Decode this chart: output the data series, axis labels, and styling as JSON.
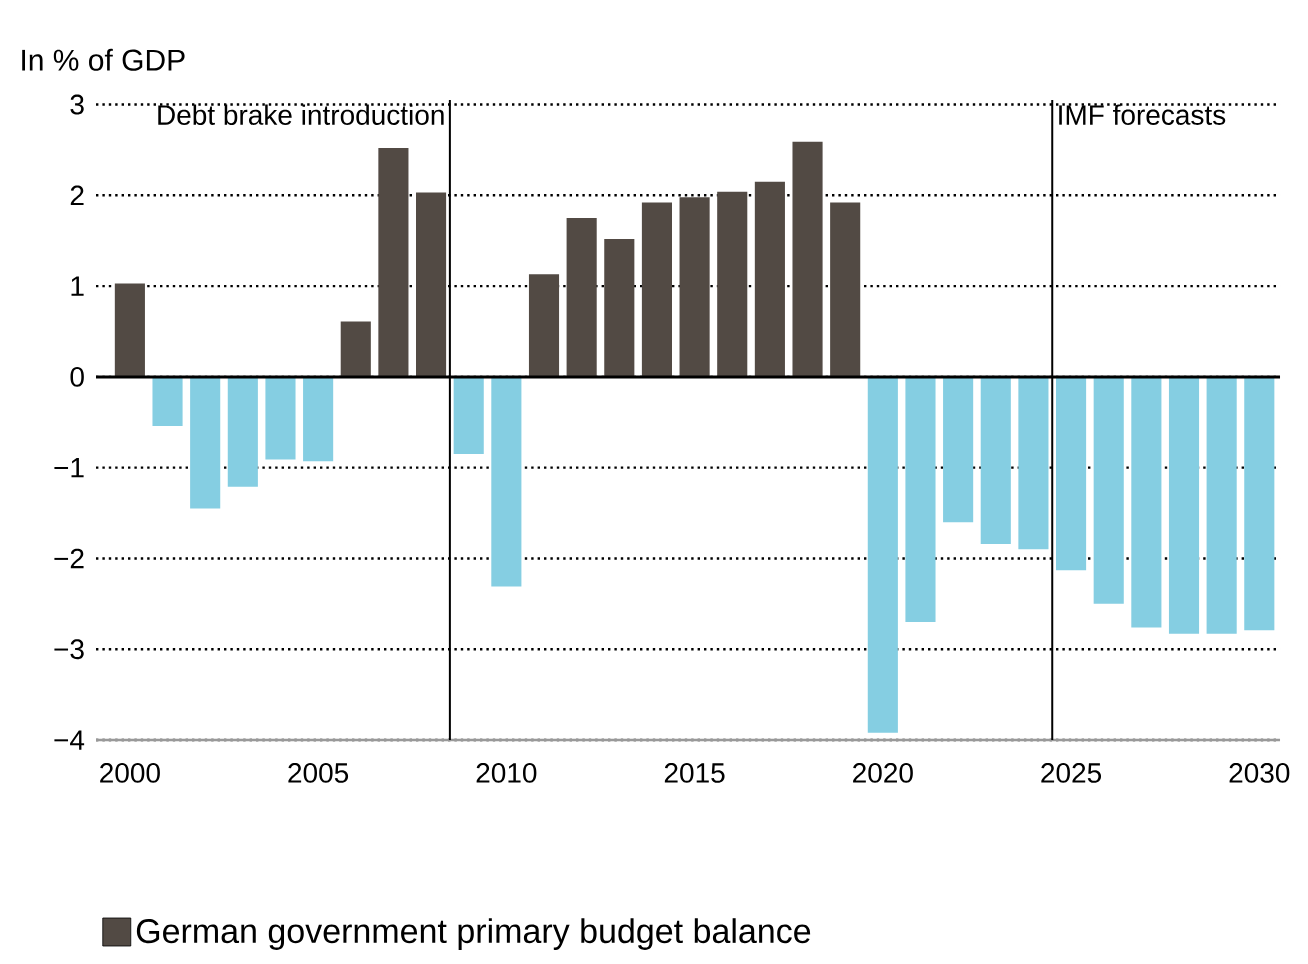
{
  "chart_data": {
    "type": "bar",
    "ylabel": "In % of GDP",
    "x": [
      2000,
      2001,
      2002,
      2003,
      2004,
      2005,
      2006,
      2007,
      2008,
      2009,
      2010,
      2011,
      2012,
      2013,
      2014,
      2015,
      2016,
      2017,
      2018,
      2019,
      2020,
      2021,
      2022,
      2023,
      2024,
      2025,
      2026,
      2027,
      2028,
      2029,
      2030
    ],
    "series": [
      {
        "name": "German government primary budget balance",
        "color": "#524a44",
        "values": [
          1.03,
          -0.54,
          -1.45,
          -1.21,
          -0.91,
          -0.93,
          0.61,
          2.52,
          2.03,
          -0.85,
          -2.31,
          1.13,
          1.75,
          1.52,
          1.92,
          1.98,
          2.04,
          2.15,
          2.59,
          1.92,
          -3.92,
          -2.7,
          -1.6,
          -1.84,
          -1.9,
          -2.13,
          -2.5,
          -2.76,
          -2.83,
          -2.83,
          -2.79
        ],
        "colors": [
          "#524a44",
          "#85cee2",
          "#85cee2",
          "#85cee2",
          "#85cee2",
          "#85cee2",
          "#524a44",
          "#524a44",
          "#524a44",
          "#85cee2",
          "#85cee2",
          "#524a44",
          "#524a44",
          "#524a44",
          "#524a44",
          "#524a44",
          "#524a44",
          "#524a44",
          "#524a44",
          "#524a44",
          "#85cee2",
          "#85cee2",
          "#85cee2",
          "#85cee2",
          "#85cee2",
          "#85cee2",
          "#85cee2",
          "#85cee2",
          "#85cee2",
          "#85cee2",
          "#85cee2"
        ]
      }
    ],
    "xlim": [
      1999.1,
      2030.55
    ],
    "xticks": [
      2000,
      2005,
      2010,
      2015,
      2020,
      2025,
      2030
    ],
    "ylim": [
      -4,
      3.05
    ],
    "yticks": [
      {
        "value": -4,
        "label": "−4"
      },
      {
        "value": -3,
        "label": "−3"
      },
      {
        "value": -2,
        "label": "−2"
      },
      {
        "value": -1,
        "label": "−1"
      },
      0,
      1,
      2,
      3
    ],
    "ref_lines": [
      {
        "axis": "x",
        "value": 2008.5,
        "label": "Debt brake introduction",
        "color": "#000000"
      },
      {
        "axis": "x",
        "value": 2024.5,
        "label": "IMF forecasts",
        "color": "#000000"
      },
      {
        "axis": "y",
        "value": 0,
        "color": "#000000"
      }
    ],
    "grid": "y",
    "legend": "bottom"
  }
}
